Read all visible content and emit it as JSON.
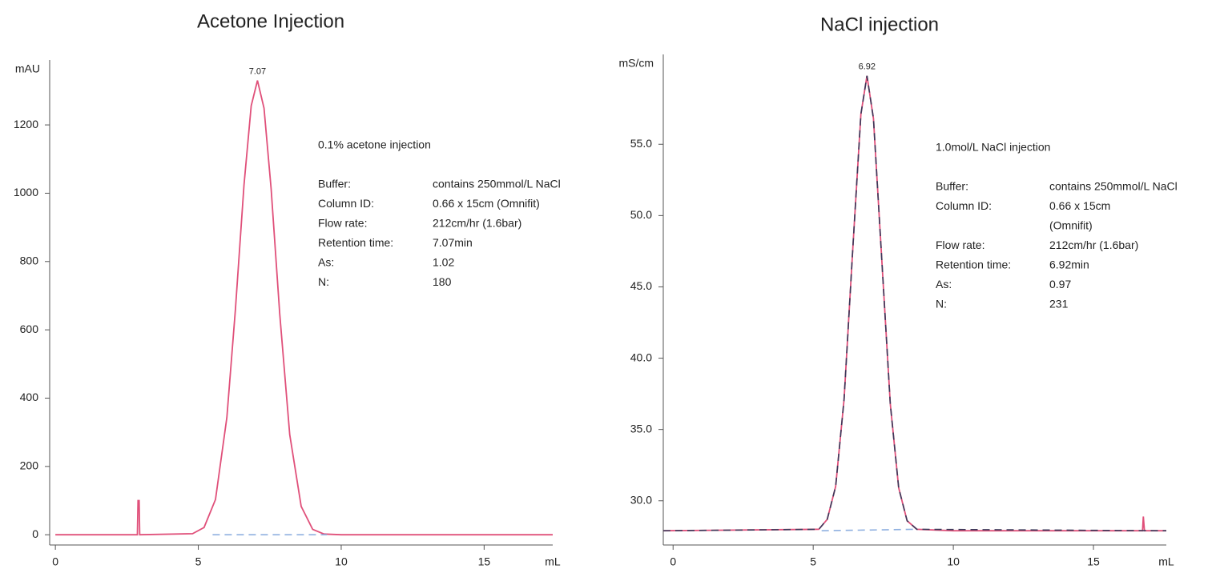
{
  "chart_data": [
    {
      "type": "line",
      "title": "Acetone Injection",
      "y_label": "mAU",
      "x_label": "mL",
      "xlim": [
        -0.2,
        17.4
      ],
      "xticks": [
        0,
        5,
        10,
        15
      ],
      "ylim": [
        -30,
        1390
      ],
      "yticks": [
        0,
        200,
        400,
        600,
        800,
        1000,
        1200
      ],
      "peak_label": "7.07",
      "info_title": "0.1% acetone injection",
      "info": [
        {
          "label": "Buffer:",
          "value": "contains 250mmol/L NaCl"
        },
        {
          "label": "Column ID:",
          "value": "0.66 x 15cm (Omnifit)"
        },
        {
          "label": "Flow rate:",
          "value": "212cm/hr (1.6bar)"
        },
        {
          "label": "Retention time:",
          "value": "7.07min"
        },
        {
          "label": "As:",
          "value": "1.02"
        },
        {
          "label": "N:",
          "value": "180"
        }
      ],
      "series": [
        {
          "color": "#e0507a",
          "dash": false,
          "x": [
            0,
            2.87,
            2.89,
            2.93,
            2.95,
            4.8,
            5.2,
            5.6,
            6.0,
            6.3,
            6.6,
            6.85,
            7.07,
            7.3,
            7.55,
            7.85,
            8.2,
            8.6,
            9.0,
            9.4,
            10,
            17.4
          ],
          "values": [
            0,
            0,
            100,
            100,
            0,
            3,
            21,
            103,
            343,
            660,
            1024,
            1256,
            1330,
            1249,
            1012,
            647,
            293,
            83,
            16,
            2,
            0,
            0
          ]
        },
        {
          "color": "#8fb0e0",
          "dash": true,
          "x": [
            5.5,
            9.5
          ],
          "values": [
            0,
            0
          ]
        }
      ]
    },
    {
      "type": "line",
      "title": "NaCl injection",
      "y_label": "mS/cm",
      "x_label": "mL",
      "xlim": [
        -0.35,
        17.6
      ],
      "xticks": [
        0,
        5,
        10,
        15
      ],
      "ylim": [
        26.9,
        61.3
      ],
      "yticks": [
        {
          "value": 30,
          "label": "30.0"
        },
        {
          "value": 35,
          "label": "35.0"
        },
        {
          "value": 40,
          "label": "40.0"
        },
        {
          "value": 45,
          "label": "45.0"
        },
        {
          "value": 50,
          "label": "50.0"
        },
        {
          "value": 55,
          "label": "55.0"
        }
      ],
      "peak_label": "6.92",
      "info_title": "1.0mol/L NaCl injection",
      "info": [
        {
          "label": "Buffer:",
          "value": [
            "contains 250mmol/L NaCl"
          ]
        },
        {
          "label": "Column ID:",
          "value": [
            "0.66 x 15cm",
            "(Omnifit)"
          ]
        },
        {
          "label": "Flow rate:",
          "value": [
            "212cm/hr (1.6bar)"
          ]
        },
        {
          "label": "Retention time:",
          "value": [
            "6.92min"
          ]
        },
        {
          "label": "As:",
          "value": [
            "0.97"
          ]
        },
        {
          "label": "N:",
          "value": [
            "231"
          ]
        }
      ],
      "series": [
        {
          "color": "#e0507a",
          "dash": false,
          "x": [
            -0.35,
            5.2,
            5.5,
            5.8,
            6.1,
            6.4,
            6.7,
            6.92,
            7.15,
            7.45,
            7.75,
            8.05,
            8.35,
            8.7,
            10,
            16.75,
            16.78,
            16.82,
            17.6
          ],
          "values": [
            27.9,
            28.0,
            28.7,
            31.0,
            37.1,
            47.3,
            57.1,
            59.8,
            56.8,
            46.8,
            36.8,
            30.9,
            28.6,
            28.0,
            27.9,
            27.9,
            28.9,
            27.9,
            27.9
          ]
        },
        {
          "color": "#3a3a5a",
          "dash": true,
          "x": [
            -0.35,
            5.2,
            5.5,
            5.8,
            6.1,
            6.4,
            6.7,
            6.92,
            7.15,
            7.45,
            7.75,
            8.05,
            8.35,
            8.7,
            17.6
          ],
          "values": [
            27.9,
            28.0,
            28.7,
            31.0,
            37.1,
            47.3,
            57.1,
            59.8,
            56.8,
            46.8,
            36.8,
            30.9,
            28.6,
            28.0,
            27.9
          ]
        },
        {
          "color": "#8fb0e0",
          "dash": true,
          "x": [
            5.3,
            8.6
          ],
          "values": [
            27.9,
            28.0
          ]
        }
      ]
    }
  ]
}
